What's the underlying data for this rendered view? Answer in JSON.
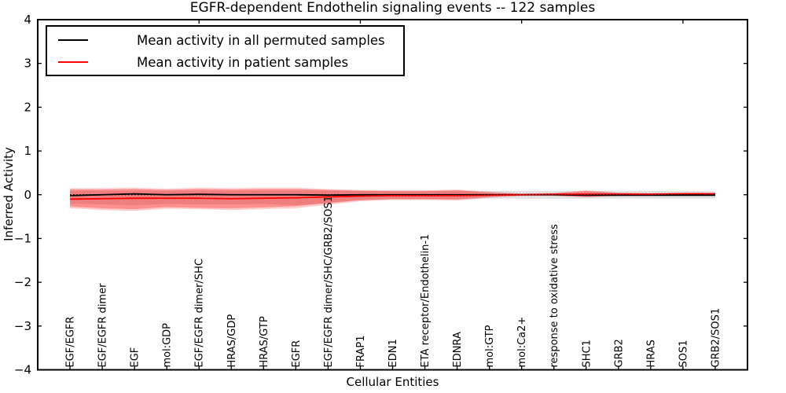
{
  "title": "EGFR-dependent Endothelin signaling events -- 122 samples",
  "colors": {
    "permuted_line": "#000000",
    "patient_line": "#ff0000",
    "permuted_band": "rgba(0,0,0,0.11)",
    "patient_band_outer": "rgba(255,0,0,0.20)",
    "patient_band_inner": "rgba(255,0,0,0.30)",
    "axis": "#000000",
    "background": "#ffffff"
  },
  "chart_data": {
    "type": "line",
    "title": "EGFR-dependent Endothelin signaling events -- 122 samples",
    "xlabel": "Cellular Entities",
    "ylabel": "Inferred Activity",
    "ylim": [
      -4,
      4
    ],
    "xlim": [
      0,
      22
    ],
    "grid": false,
    "legend_position": "upper left",
    "ytick_values": [
      4,
      3,
      2,
      1,
      0,
      -1,
      -2,
      -3,
      -4
    ],
    "ytick_labels": [
      "4",
      "3",
      "2",
      "1",
      "0",
      "−1",
      "−2",
      "−3",
      "−4"
    ],
    "top_tick_positions": [
      5,
      10,
      15,
      20
    ],
    "categories": [
      "EGF/EGFR",
      "EGF/EGFR dimer",
      "EGF",
      "mol:GDP",
      "EGF/EGFR dimer/SHC",
      "HRAS/GDP",
      "HRAS/GTP",
      "EGFR",
      "EGF/EGFR dimer/SHC/GRB2/SOS1",
      "FRAP1",
      "EDN1",
      "ETA receptor/Endothelin-1",
      "EDNRA",
      "mol:GTP",
      "mol:Ca2+",
      "response to oxidative stress",
      "SHC1",
      "GRB2",
      "HRAS",
      "SOS1",
      "GRB2/SOS1"
    ],
    "series": [
      {
        "name": "Mean activity in all permuted samples",
        "color": "#000000",
        "style": "solid",
        "values": [
          -0.02,
          0.0,
          0.02,
          0.0,
          0.01,
          0.0,
          0.0,
          0.0,
          -0.01,
          0.0,
          0.0,
          0.0,
          0.0,
          0.0,
          0.0,
          0.0,
          -0.01,
          -0.01,
          -0.01,
          -0.01,
          -0.01
        ]
      },
      {
        "name": "Mean activity in patient samples",
        "color": "#ff0000",
        "style": "solid",
        "values": [
          -0.1,
          -0.09,
          -0.08,
          -0.08,
          -0.08,
          -0.09,
          -0.08,
          -0.07,
          -0.05,
          -0.03,
          -0.02,
          -0.02,
          -0.02,
          -0.01,
          0.0,
          0.01,
          0.01,
          0.01,
          0.01,
          0.02,
          0.02
        ]
      }
    ],
    "reference_line": {
      "value": 0,
      "style": "dotted",
      "color": "#000000"
    },
    "bands": [
      {
        "name": "permuted-std-band",
        "color": "rgba(0,0,0,0.11)",
        "hi": [
          0.09,
          0.09,
          0.09,
          0.09,
          0.09,
          0.09,
          0.09,
          0.09,
          0.09,
          0.09,
          0.09,
          0.09,
          0.09,
          0.09,
          0.09,
          0.09,
          0.09,
          0.09,
          0.09,
          0.09,
          0.08
        ],
        "lo": [
          -0.2,
          -0.22,
          -0.24,
          -0.21,
          -0.22,
          -0.22,
          -0.21,
          -0.24,
          -0.19,
          -0.13,
          -0.1,
          -0.1,
          -0.1,
          -0.09,
          -0.09,
          -0.09,
          -0.09,
          -0.09,
          -0.09,
          -0.09,
          -0.09
        ]
      },
      {
        "name": "patient-band-outer",
        "color": "rgba(255,0,0,0.20)",
        "hi": [
          0.15,
          0.15,
          0.16,
          0.14,
          0.16,
          0.15,
          0.16,
          0.16,
          0.13,
          0.11,
          0.1,
          0.1,
          0.12,
          0.07,
          0.03,
          0.04,
          0.1,
          0.05,
          0.04,
          0.05,
          0.05
        ],
        "lo": [
          -0.31,
          -0.35,
          -0.37,
          -0.32,
          -0.33,
          -0.35,
          -0.33,
          -0.31,
          -0.23,
          -0.15,
          -0.12,
          -0.12,
          -0.13,
          -0.07,
          -0.03,
          -0.03,
          -0.06,
          -0.03,
          -0.02,
          -0.02,
          -0.01
        ]
      },
      {
        "name": "patient-band-inner",
        "color": "rgba(255,0,0,0.30)",
        "hi": [
          0.12,
          0.12,
          0.13,
          0.11,
          0.13,
          0.12,
          0.13,
          0.13,
          0.11,
          0.09,
          0.08,
          0.08,
          0.1,
          0.05,
          0.02,
          0.03,
          0.08,
          0.04,
          0.03,
          0.04,
          0.04
        ],
        "lo": [
          -0.27,
          -0.31,
          -0.33,
          -0.28,
          -0.3,
          -0.31,
          -0.29,
          -0.26,
          -0.19,
          -0.12,
          -0.1,
          -0.1,
          -0.11,
          -0.05,
          -0.02,
          -0.02,
          -0.05,
          -0.02,
          -0.01,
          -0.01,
          0.0
        ]
      }
    ]
  }
}
